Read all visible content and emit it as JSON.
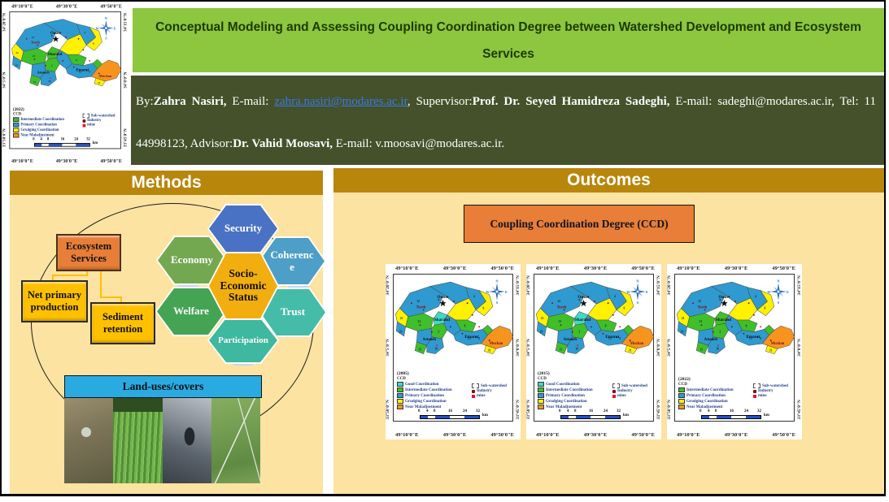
{
  "title": {
    "line1": "Conceptual Modeling and Assessing Coupling Coordination Degree between Watershed Development and Ecosystem",
    "line2": "Services"
  },
  "authors": {
    "by_label": "By:",
    "student_name": "Zahra Nasiri,",
    "email_label_1": " E-mail: ",
    "email_1": "zahra.nasiri@modares.ac.ir",
    "sep_1": ",   Supervisor:",
    "supervisor_name": "Prof. Dr. Seyed Hamidreza Sadeghi,",
    "middle_text": " E-mail: sadeghi@modares.ac.ir, Tel: 11 44998123, Advisor:",
    "advisor_name": "Dr. Vahid Moosavi,",
    "end_text": " E-mail: v.moosavi@modares.ac.ir."
  },
  "methods": {
    "header": "Methods",
    "ecosystem_services": "Ecosystem Services",
    "net_primary": "Net primary production",
    "sediment": "Sediment retention",
    "hex_center": "Socio-Economic Status",
    "hexagons": [
      "Security",
      "Economy",
      "Coherence",
      "Welfare",
      "Trust",
      "Participation"
    ],
    "landuse_label": "Land-uses/covers",
    "photos": [
      "drilling-site",
      "crop-rows",
      "mining-excavator",
      "wind-turbines"
    ]
  },
  "outcomes": {
    "header": "Outcomes",
    "ccd_box": "Coupling Coordination Degree (CCD)"
  },
  "map_shared": {
    "top_coords": [
      "49°10'0\"E",
      "49°30'0\"E",
      "49°50'0\"E"
    ],
    "bottom_coords": [
      "49°10'0\"E",
      "49°30'0\"E",
      "49°50'0\"E"
    ],
    "left_coords": [
      "34°20'0\"N",
      "34°5'0\"N",
      "33°50'0\"N"
    ],
    "right_coords": [
      "34°15'0\"N",
      "34°0'0\"N",
      "33°45'0\"N"
    ],
    "compass": [
      "N",
      "E",
      "S",
      "W"
    ],
    "places": {
      "outlet": "Outlet",
      "toreh": "Toreh",
      "sharand": "Sharand",
      "astaneh": "Astaneh",
      "emarat": "Emarat",
      "muchan": "Muchan"
    },
    "ccd_label": "CCD",
    "legend_right": [
      {
        "label": "Sub-watershed"
      },
      {
        "label": "Industry"
      },
      {
        "label": "mine"
      }
    ],
    "scale_ticks": [
      "0",
      "4",
      "8",
      "16",
      "24",
      "32"
    ],
    "scale_unit": "km",
    "subwatershed_numbers": [
      "22",
      "4",
      "6",
      "21",
      "20",
      "23",
      "2",
      "8",
      "13",
      "15",
      "16",
      "11",
      "9"
    ]
  },
  "maps": [
    {
      "year": "(2005)",
      "cyan": true,
      "legend": [
        {
          "label": "Good Coordination",
          "color": "#3fd9c6"
        },
        {
          "label": "Intermediate Coordination",
          "color": "#3fbf2a"
        },
        {
          "label": "Primary Coordination",
          "color": "#2e9ad0"
        },
        {
          "label": "Grudging Coordination",
          "color": "#fff100"
        },
        {
          "label": "Near Maladjustment",
          "color": "#f7941e"
        }
      ]
    },
    {
      "year": "(2015)",
      "cyan": true,
      "legend": [
        {
          "label": "Good Coordination",
          "color": "#3fd9c6"
        },
        {
          "label": "Intermediate Coordination",
          "color": "#3fbf2a"
        },
        {
          "label": "Primary Coordination",
          "color": "#2e9ad0"
        },
        {
          "label": "Grudging Coordination",
          "color": "#fff100"
        },
        {
          "label": "Near Maladjustment",
          "color": "#f7941e"
        }
      ]
    },
    {
      "year": "(2022)",
      "cyan": false,
      "legend": [
        {
          "label": "Intermediate Coordination",
          "color": "#3fbf2a"
        },
        {
          "label": "Primary Coordination",
          "color": "#2e9ad0"
        },
        {
          "label": "Grudging Coordination",
          "color": "#fff100"
        },
        {
          "label": "Near Maladjustment",
          "color": "#f7941e"
        }
      ]
    }
  ],
  "thumbnail_map": {
    "year": "(2022)",
    "cyan": false,
    "legend": [
      {
        "label": "Intermediate Coordination",
        "color": "#3fbf2a"
      },
      {
        "label": "Primary Coordination",
        "color": "#2e9ad0"
      },
      {
        "label": "Grudging Coordination",
        "color": "#fff100"
      },
      {
        "label": "Near Maladjustment",
        "color": "#f7941e"
      }
    ]
  },
  "colors": {
    "title_bar": "#8dc63f",
    "author_bar": "#44512a",
    "section_header": "#b8860b",
    "panel_body": "#fce3a1",
    "orange_box": "#e87e37",
    "yellow_box": "#ffc000",
    "landuse_bar": "#29abe2",
    "good": "#3fd9c6",
    "intermediate": "#3fbf2a",
    "primary": "#2e9ad0",
    "grudging": "#fff100",
    "near_maladjustment": "#f7941e",
    "industry": "#7b1113",
    "mine": "#e8112d",
    "link": "#3b78e7"
  }
}
